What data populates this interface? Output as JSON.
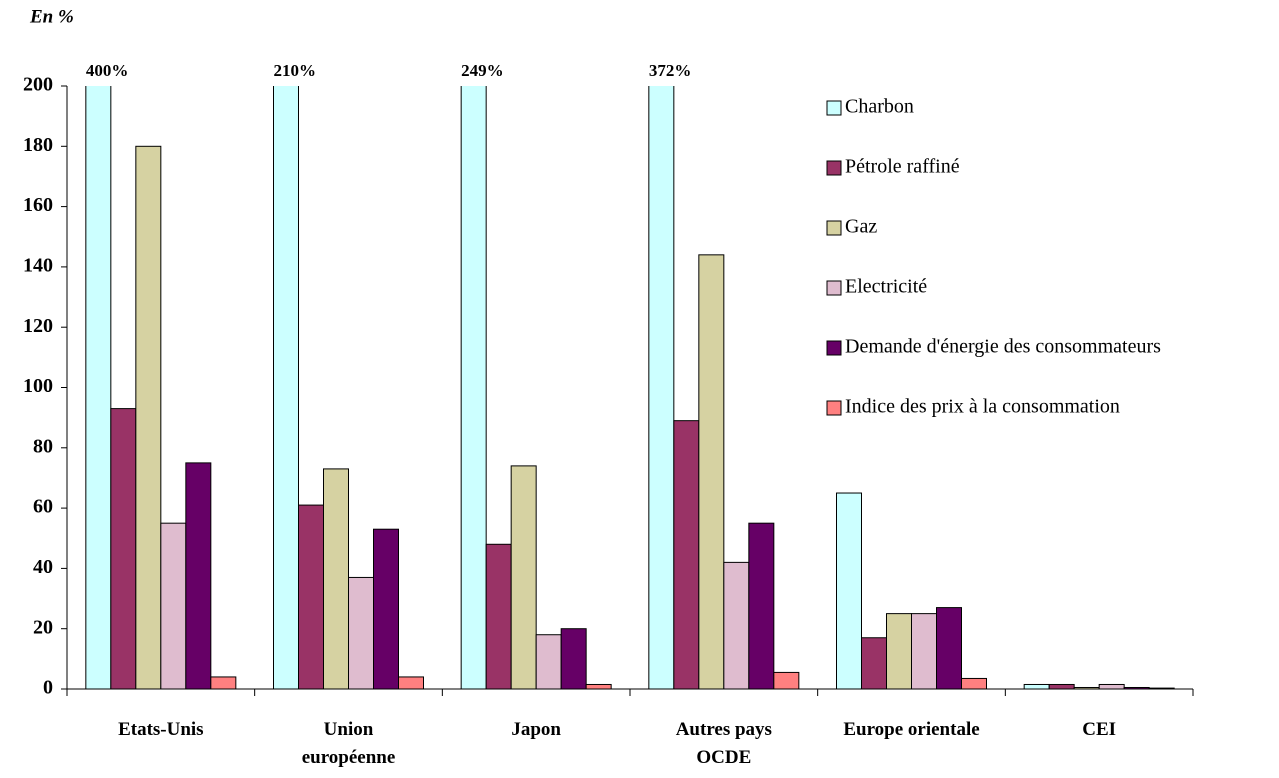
{
  "chart_data": {
    "type": "bar",
    "title": "En %",
    "categories": [
      "Etats-Unis",
      "Union\neuropéenne",
      "Japon",
      "Autres pays\nOCDE",
      "Europe orientale",
      "CEI"
    ],
    "series": [
      {
        "name": "Charbon",
        "color": "#ccffff",
        "values": [
          400,
          210,
          249,
          372,
          65,
          1.5
        ],
        "value_labels": [
          "400%",
          "210%",
          "249%",
          "372%",
          null,
          null
        ]
      },
      {
        "name": "Pétrole raffiné",
        "color": "#993366",
        "values": [
          93,
          61,
          48,
          89,
          17,
          1.5
        ]
      },
      {
        "name": "Gaz",
        "color": "#d6d2a2",
        "values": [
          180,
          73,
          74,
          144,
          25,
          0.5
        ]
      },
      {
        "name": "Electricité",
        "color": "#dfbccf",
        "values": [
          55,
          37,
          18,
          42,
          25,
          1.5
        ]
      },
      {
        "name": "Demande d'énergie des consommateurs",
        "color": "#660066",
        "values": [
          75,
          53,
          20,
          55,
          27,
          0.5
        ]
      },
      {
        "name": "Indice des prix à la consommation",
        "color": "#ff8080",
        "values": [
          4,
          4,
          1.5,
          5.5,
          3.5,
          0.3
        ]
      }
    ],
    "ylim": [
      0,
      200
    ],
    "yticks": [
      0,
      20,
      40,
      60,
      80,
      100,
      120,
      140,
      160,
      180,
      200
    ],
    "legend": "right"
  }
}
